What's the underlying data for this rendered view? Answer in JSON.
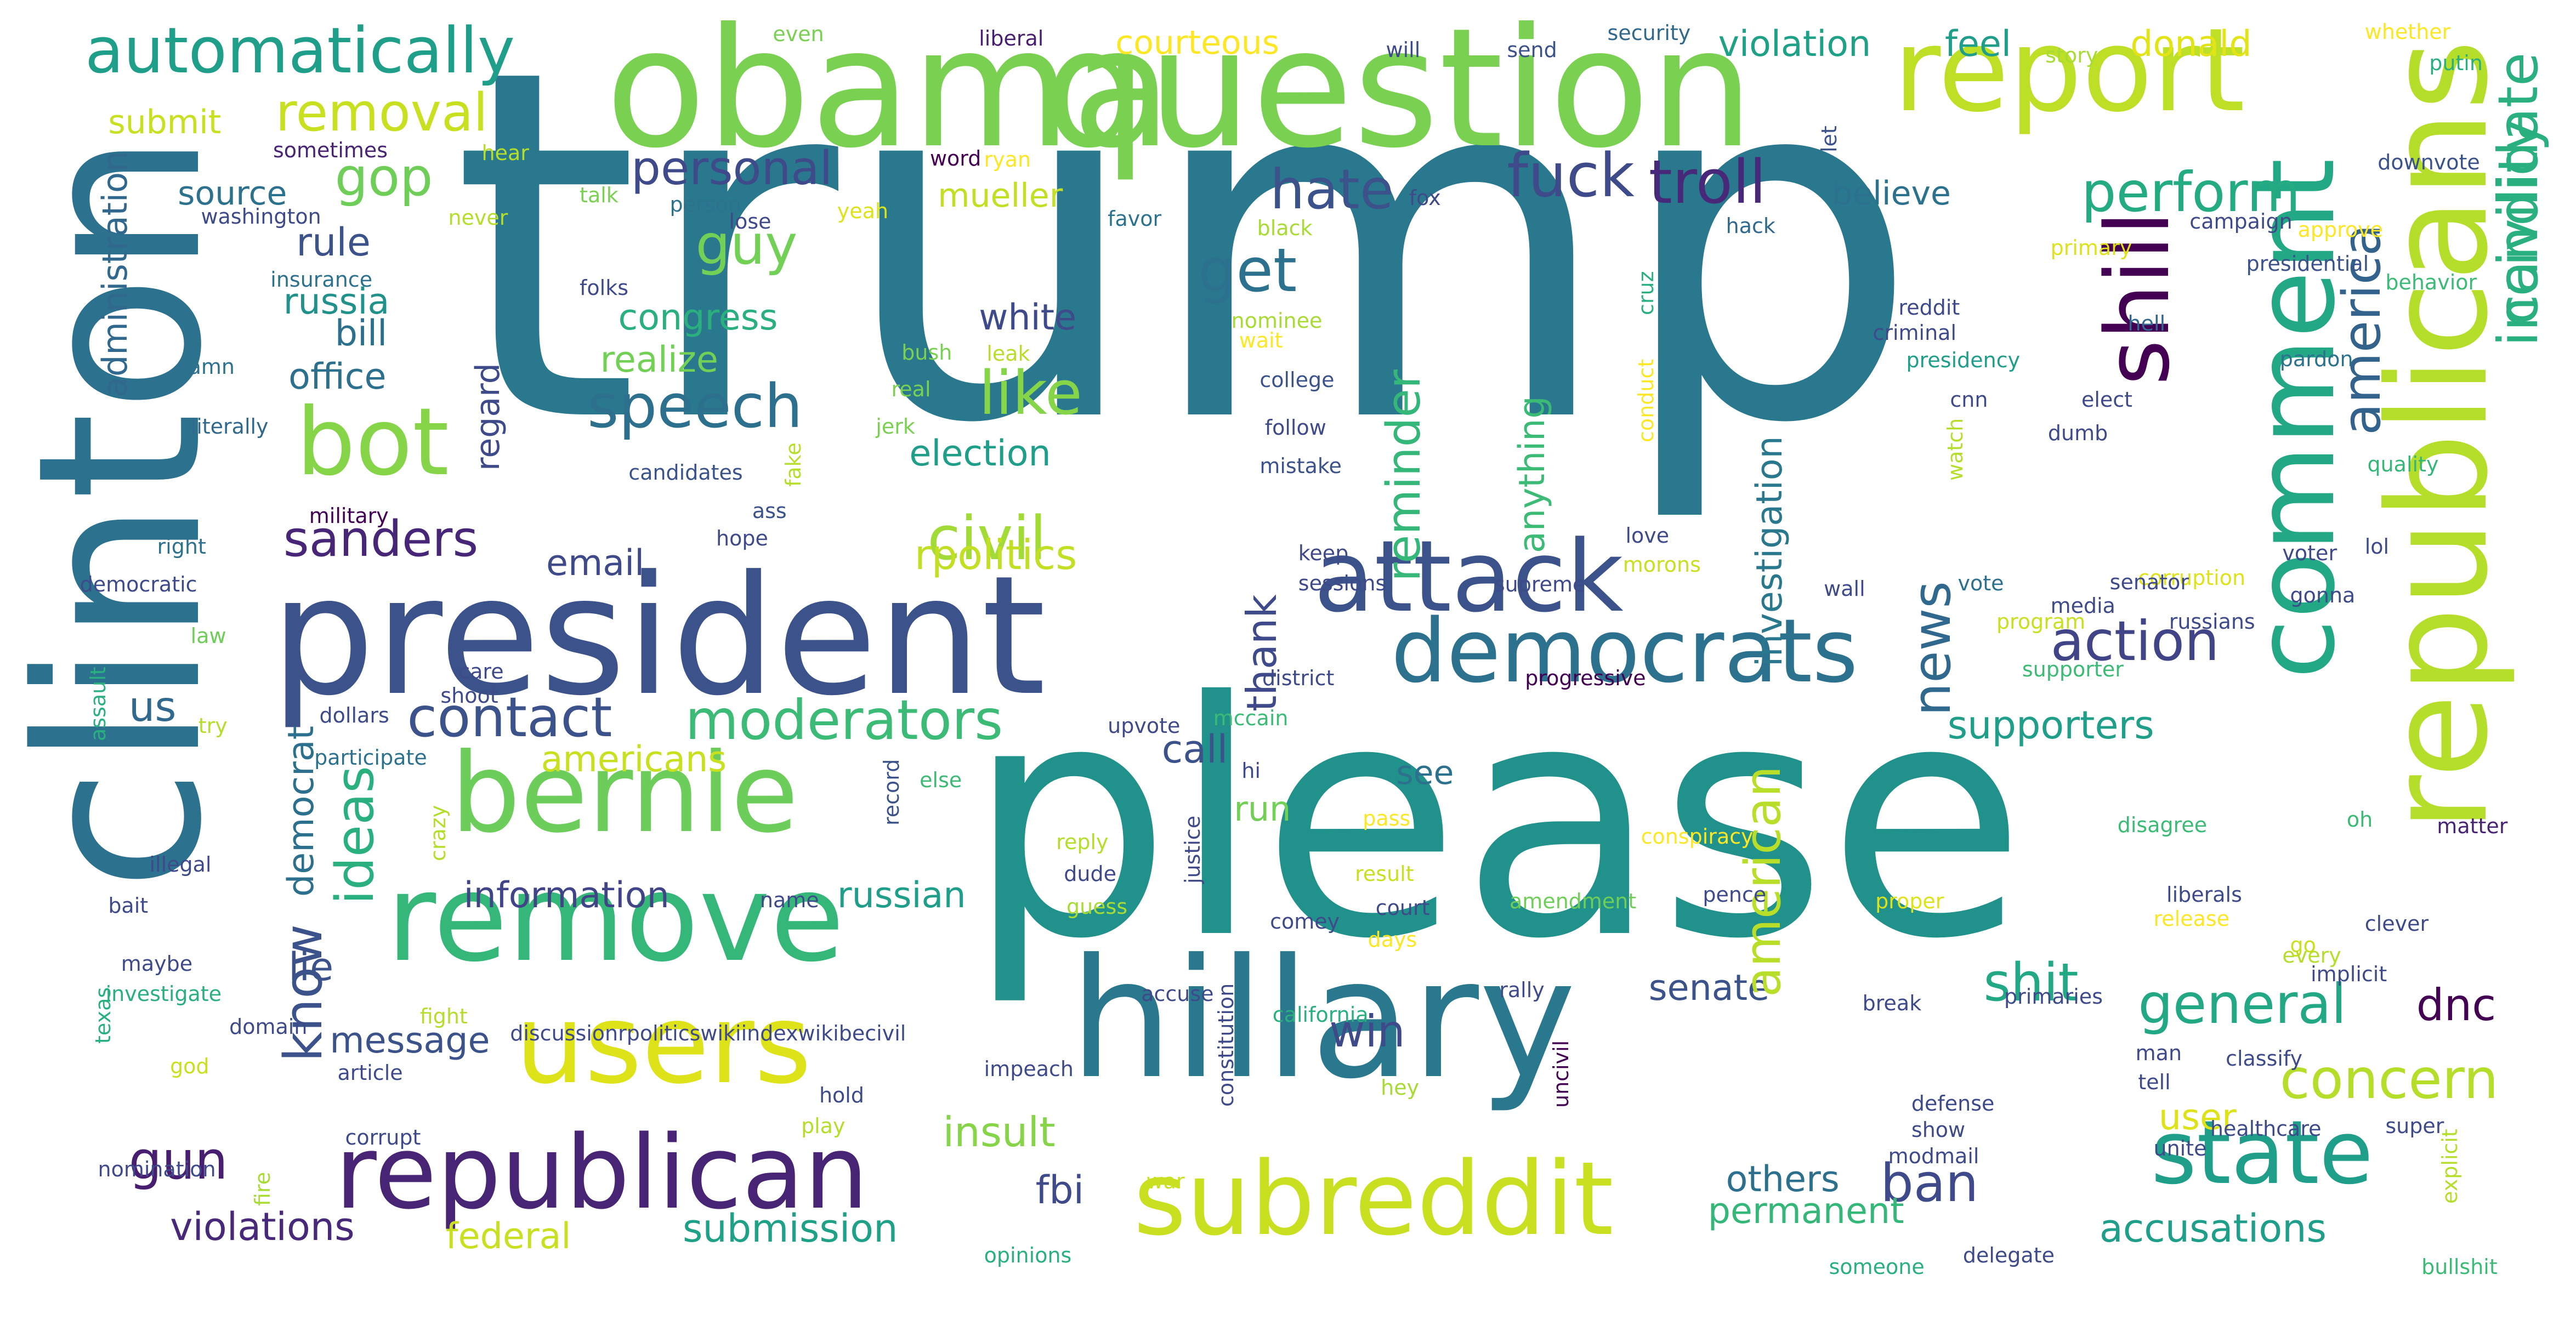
{
  "cloud": {
    "background": "#ffffff",
    "palette": [
      "#440154",
      "#3b528b",
      "#21918c",
      "#5ec962",
      "#fde725"
    ],
    "words": [
      {
        "text": "trump",
        "color": "#2a788e"
      },
      {
        "text": "please",
        "color": "#21918c"
      },
      {
        "text": "clinton",
        "color": "#2c728e"
      },
      {
        "text": "obama",
        "color": "#7ad151"
      },
      {
        "text": "question",
        "color": "#7ad151"
      },
      {
        "text": "president",
        "color": "#3b528b"
      },
      {
        "text": "hillary",
        "color": "#2a788e"
      },
      {
        "text": "republicans",
        "color": "#b5de2b"
      },
      {
        "text": "report",
        "color": "#bddf26"
      },
      {
        "text": "comment",
        "color": "#22a884"
      },
      {
        "text": "remove",
        "color": "#35b779"
      },
      {
        "text": "users",
        "color": "#dde318"
      },
      {
        "text": "bernie",
        "color": "#6ccd5a"
      },
      {
        "text": "republican",
        "color": "#482475"
      },
      {
        "text": "subreddit",
        "color": "#c8e020"
      },
      {
        "text": "democrats",
        "color": "#2c728e"
      },
      {
        "text": "attack",
        "color": "#3b528b"
      },
      {
        "text": "state",
        "color": "#1f9e89"
      },
      {
        "text": "shill",
        "color": "#440154"
      },
      {
        "text": "bot",
        "color": "#86d549"
      },
      {
        "text": "automatically",
        "color": "#1f9e89"
      },
      {
        "text": "incivility",
        "color": "#2ab07f"
      },
      {
        "text": "candidate",
        "color": "#2ab07f"
      },
      {
        "text": "removal",
        "color": "#c8e020"
      },
      {
        "text": "personal",
        "color": "#3e4a89"
      },
      {
        "text": "gop",
        "color": "#6ece58"
      },
      {
        "text": "guy",
        "color": "#73d056"
      },
      {
        "text": "hate",
        "color": "#3b528b"
      },
      {
        "text": "fuck",
        "color": "#3e4a89"
      },
      {
        "text": "troll",
        "color": "#482878"
      },
      {
        "text": "perform",
        "color": "#25ab82"
      },
      {
        "text": "america",
        "color": "#33638d"
      },
      {
        "text": "speech",
        "color": "#2d708e"
      },
      {
        "text": "like",
        "color": "#86d549"
      },
      {
        "text": "get",
        "color": "#2c728e"
      },
      {
        "text": "sanders",
        "color": "#482677"
      },
      {
        "text": "civil",
        "color": "#a2da37"
      },
      {
        "text": "moderators",
        "color": "#3bbb75"
      },
      {
        "text": "contact",
        "color": "#3b528b"
      },
      {
        "text": "action",
        "color": "#414487"
      },
      {
        "text": "news",
        "color": "#31688e"
      },
      {
        "text": "general",
        "color": "#22a884"
      },
      {
        "text": "concern",
        "color": "#b5de2b"
      },
      {
        "text": "shit",
        "color": "#22a884"
      },
      {
        "text": "dnc",
        "color": "#440154"
      },
      {
        "text": "ban",
        "color": "#3e4a89"
      },
      {
        "text": "know",
        "color": "#3b528b"
      },
      {
        "text": "gun",
        "color": "#481f70"
      },
      {
        "text": "ideas",
        "color": "#2ab07f"
      },
      {
        "text": "win",
        "color": "#3e4a89"
      },
      {
        "text": "senate",
        "color": "#3b528b"
      },
      {
        "text": "american",
        "color": "#b8de29"
      },
      {
        "text": "russian",
        "color": "#1f9e89"
      },
      {
        "text": "information",
        "color": "#414487"
      },
      {
        "text": "insult",
        "color": "#86d549"
      },
      {
        "text": "message",
        "color": "#3b528b"
      },
      {
        "text": "violations",
        "color": "#482878"
      },
      {
        "text": "submission",
        "color": "#1fa188"
      },
      {
        "text": "federal",
        "color": "#c8e020"
      },
      {
        "text": "accusations",
        "color": "#1f9e89"
      },
      {
        "text": "permanent",
        "color": "#35b779"
      },
      {
        "text": "others",
        "color": "#2d708e"
      },
      {
        "text": "supporters",
        "color": "#1f9e89"
      },
      {
        "text": "investigation",
        "color": "#2a788e"
      },
      {
        "text": "reminder",
        "color": "#35b779"
      },
      {
        "text": "thank",
        "color": "#3e4a89"
      },
      {
        "text": "anything",
        "color": "#3bbb75"
      },
      {
        "text": "user",
        "color": "#dde318"
      },
      {
        "text": "fbi",
        "color": "#3e4a89"
      },
      {
        "text": "lie",
        "color": "#3b528b"
      },
      {
        "text": "democrat",
        "color": "#2d708e"
      },
      {
        "text": "americans",
        "color": "#c8e020"
      },
      {
        "text": "email",
        "color": "#3e4a89"
      },
      {
        "text": "us",
        "color": "#31688e"
      },
      {
        "text": "rpolitics",
        "color": "#c2df23"
      },
      {
        "text": "election",
        "color": "#1f9e89"
      },
      {
        "text": "realize",
        "color": "#73d056"
      },
      {
        "text": "congress",
        "color": "#2ab07f"
      },
      {
        "text": "russia",
        "color": "#21918c"
      },
      {
        "text": "bill",
        "color": "#2d708e"
      },
      {
        "text": "office",
        "color": "#2d708e"
      },
      {
        "text": "rule",
        "color": "#3b528b"
      },
      {
        "text": "source",
        "color": "#2c728e"
      },
      {
        "text": "submit",
        "color": "#c8e020"
      },
      {
        "text": "administration",
        "color": "#31688e"
      },
      {
        "text": "regard",
        "color": "#3e4a89"
      },
      {
        "text": "white",
        "color": "#3e4a89"
      },
      {
        "text": "mueller",
        "color": "#c2df23"
      },
      {
        "text": "courteous",
        "color": "#fde725"
      },
      {
        "text": "violation",
        "color": "#1fa188"
      },
      {
        "text": "feel",
        "color": "#1f9e89"
      },
      {
        "text": "donald",
        "color": "#e2e418"
      },
      {
        "text": "believe",
        "color": "#2c728e"
      },
      {
        "text": "call",
        "color": "#3b528b"
      },
      {
        "text": "see",
        "color": "#2c728e"
      },
      {
        "text": "run",
        "color": "#73d056"
      },
      {
        "text": "even",
        "color": "#7ad151"
      },
      {
        "text": "liberal",
        "color": "#481f70"
      },
      {
        "text": "will",
        "color": "#3e4a89"
      },
      {
        "text": "send",
        "color": "#3b528b"
      },
      {
        "text": "security",
        "color": "#31688e"
      },
      {
        "text": "story",
        "color": "#a8db34"
      },
      {
        "text": "whether",
        "color": "#fde725"
      },
      {
        "text": "putin",
        "color": "#2ab07f"
      },
      {
        "text": "sometimes",
        "color": "#482475"
      },
      {
        "text": "washington",
        "color": "#3e4a89"
      },
      {
        "text": "hear",
        "color": "#b5de2b"
      },
      {
        "text": "talk",
        "color": "#7ad151"
      },
      {
        "text": "person",
        "color": "#2c728e"
      },
      {
        "text": "lose",
        "color": "#3e4a89"
      },
      {
        "text": "word",
        "color": "#440154"
      },
      {
        "text": "ryan",
        "color": "#fde725"
      },
      {
        "text": "yeah",
        "color": "#dde318"
      },
      {
        "text": "favor",
        "color": "#2c728e"
      },
      {
        "text": "black",
        "color": "#a8db34"
      },
      {
        "text": "fox",
        "color": "#3e4a89"
      },
      {
        "text": "hack",
        "color": "#31688e"
      },
      {
        "text": "let",
        "color": "#3b528b"
      },
      {
        "text": "campaign",
        "color": "#3e4a89"
      },
      {
        "text": "approve",
        "color": "#fde725"
      },
      {
        "text": "downvote",
        "color": "#3b528b"
      },
      {
        "text": "never",
        "color": "#b5de2b"
      },
      {
        "text": "insurance",
        "color": "#2c728e"
      },
      {
        "text": "folks",
        "color": "#3e4a89"
      },
      {
        "text": "nominee",
        "color": "#a8db34"
      },
      {
        "text": "primary",
        "color": "#dde318"
      },
      {
        "text": "presidential",
        "color": "#3b528b"
      },
      {
        "text": "behavior",
        "color": "#3bbb75"
      },
      {
        "text": "damn",
        "color": "#2c728e"
      },
      {
        "text": "bush",
        "color": "#7ad151"
      },
      {
        "text": "leak",
        "color": "#b8de29"
      },
      {
        "text": "wait",
        "color": "#fde725"
      },
      {
        "text": "cruz",
        "color": "#2ab07f"
      },
      {
        "text": "reddit",
        "color": "#3e4a89"
      },
      {
        "text": "criminal",
        "color": "#3e4a89"
      },
      {
        "text": "presidency",
        "color": "#1f9e89"
      },
      {
        "text": "hell",
        "color": "#31688e"
      },
      {
        "text": "pardon",
        "color": "#2c728e"
      },
      {
        "text": "real",
        "color": "#7ad151"
      },
      {
        "text": "college",
        "color": "#3b528b"
      },
      {
        "text": "literally",
        "color": "#31688e"
      },
      {
        "text": "jerk",
        "color": "#7ad151"
      },
      {
        "text": "follow",
        "color": "#3e4a89"
      },
      {
        "text": "conduct",
        "color": "#fde725"
      },
      {
        "text": "cnn",
        "color": "#3e4a89"
      },
      {
        "text": "elect",
        "color": "#3e4a89"
      },
      {
        "text": "dumb",
        "color": "#3e4a89"
      },
      {
        "text": "quality",
        "color": "#35b779"
      },
      {
        "text": "candidates",
        "color": "#3b528b"
      },
      {
        "text": "fake",
        "color": "#b5de2b"
      },
      {
        "text": "mistake",
        "color": "#3b528b"
      },
      {
        "text": "watch",
        "color": "#b5de2b"
      },
      {
        "text": "military",
        "color": "#440154"
      },
      {
        "text": "ass",
        "color": "#3b528b"
      },
      {
        "text": "hope",
        "color": "#3e4a89"
      },
      {
        "text": "right",
        "color": "#2c728e"
      },
      {
        "text": "keep",
        "color": "#3e4a89"
      },
      {
        "text": "love",
        "color": "#3e4a89"
      },
      {
        "text": "voter",
        "color": "#3e4a89"
      },
      {
        "text": "corruption",
        "color": "#dde318"
      },
      {
        "text": "lol",
        "color": "#3e4a89"
      },
      {
        "text": "democratic",
        "color": "#3e4a89"
      },
      {
        "text": "sessions",
        "color": "#3e4a89"
      },
      {
        "text": "supreme",
        "color": "#3e4a89"
      },
      {
        "text": "morons",
        "color": "#c8e020"
      },
      {
        "text": "gonna",
        "color": "#3e4a89"
      },
      {
        "text": "senator",
        "color": "#3e4a89"
      },
      {
        "text": "wall",
        "color": "#3e4a89"
      },
      {
        "text": "vote",
        "color": "#2c728e"
      },
      {
        "text": "media",
        "color": "#3e4a89"
      },
      {
        "text": "program",
        "color": "#c8e020"
      },
      {
        "text": "russians",
        "color": "#3e4a89"
      },
      {
        "text": "law",
        "color": "#6ece58"
      },
      {
        "text": "assault",
        "color": "#2ab07f"
      },
      {
        "text": "try",
        "color": "#b5de2b"
      },
      {
        "text": "care",
        "color": "#3e4a89"
      },
      {
        "text": "shoot",
        "color": "#3e4a89"
      },
      {
        "text": "district",
        "color": "#3e4a89"
      },
      {
        "text": "progressive",
        "color": "#440154"
      },
      {
        "text": "supporter",
        "color": "#3bbb75"
      },
      {
        "text": "dollars",
        "color": "#3e4a89"
      },
      {
        "text": "mccain",
        "color": "#3bbb75"
      },
      {
        "text": "upvote",
        "color": "#3e4a89"
      },
      {
        "text": "participate",
        "color": "#2c728e"
      },
      {
        "text": "hi",
        "color": "#3e4a89"
      },
      {
        "text": "record",
        "color": "#3b528b"
      },
      {
        "text": "else",
        "color": "#3bbb75"
      },
      {
        "text": "oh",
        "color": "#3bbb75"
      },
      {
        "text": "disagree",
        "color": "#3bbb75"
      },
      {
        "text": "matter",
        "color": "#482475"
      },
      {
        "text": "crazy",
        "color": "#b5de2b"
      },
      {
        "text": "illegal",
        "color": "#3e4a89"
      },
      {
        "text": "pass",
        "color": "#fde725"
      },
      {
        "text": "reply",
        "color": "#b5de2b"
      },
      {
        "text": "dude",
        "color": "#3e4a89"
      },
      {
        "text": "justice",
        "color": "#3e4a89"
      },
      {
        "text": "conspiracy",
        "color": "#fde725"
      },
      {
        "text": "result",
        "color": "#c8e020"
      },
      {
        "text": "bait",
        "color": "#3e4a89"
      },
      {
        "text": "name",
        "color": "#3e4a89"
      },
      {
        "text": "guess",
        "color": "#a8db34"
      },
      {
        "text": "court",
        "color": "#3e4a89"
      },
      {
        "text": "amendment",
        "color": "#6ece58"
      },
      {
        "text": "pence",
        "color": "#3e4a89"
      },
      {
        "text": "proper",
        "color": "#dde318"
      },
      {
        "text": "liberals",
        "color": "#3e4a89"
      },
      {
        "text": "release",
        "color": "#fde725"
      },
      {
        "text": "clever",
        "color": "#3e4a89"
      },
      {
        "text": "go",
        "color": "#c8e020"
      },
      {
        "text": "every",
        "color": "#b5de2b"
      },
      {
        "text": "implicit",
        "color": "#3e4a89"
      },
      {
        "text": "comey",
        "color": "#3e4a89"
      },
      {
        "text": "days",
        "color": "#fde725"
      },
      {
        "text": "maybe",
        "color": "#3e4a89"
      },
      {
        "text": "investigate",
        "color": "#2ab07f"
      },
      {
        "text": "texas",
        "color": "#2ab07f"
      },
      {
        "text": "domain",
        "color": "#3e4a89"
      },
      {
        "text": "fight",
        "color": "#b5de2b"
      },
      {
        "text": "discussionrpoliticswikiindexwikibecivil",
        "color": "#3e4a89"
      },
      {
        "text": "accuse",
        "color": "#3e4a89"
      },
      {
        "text": "constitution",
        "color": "#3e4a89"
      },
      {
        "text": "california",
        "color": "#2ab07f"
      },
      {
        "text": "rally",
        "color": "#3e4a89"
      },
      {
        "text": "break",
        "color": "#3e4a89"
      },
      {
        "text": "primaries",
        "color": "#3e4a89"
      },
      {
        "text": "man",
        "color": "#3e4a89"
      },
      {
        "text": "classify",
        "color": "#3e4a89"
      },
      {
        "text": "god",
        "color": "#c8e020"
      },
      {
        "text": "article",
        "color": "#3e4a89"
      },
      {
        "text": "impeach",
        "color": "#3e4a89"
      },
      {
        "text": "hey",
        "color": "#a8db34"
      },
      {
        "text": "uncivil",
        "color": "#440154"
      },
      {
        "text": "tell",
        "color": "#3e4a89"
      },
      {
        "text": "hold",
        "color": "#3e4a89"
      },
      {
        "text": "play",
        "color": "#b5de2b"
      },
      {
        "text": "defense",
        "color": "#3e4a89"
      },
      {
        "text": "show",
        "color": "#3e4a89"
      },
      {
        "text": "healthcare",
        "color": "#3e4a89"
      },
      {
        "text": "super",
        "color": "#3e4a89"
      },
      {
        "text": "corrupt",
        "color": "#3e4a89"
      },
      {
        "text": "modmail",
        "color": "#3e4a89"
      },
      {
        "text": "unite",
        "color": "#3e4a89"
      },
      {
        "text": "explicit",
        "color": "#b5de2b"
      },
      {
        "text": "nomination",
        "color": "#3e4a89"
      },
      {
        "text": "fire",
        "color": "#a8db34"
      },
      {
        "text": "war",
        "color": "#c8e020"
      },
      {
        "text": "opinions",
        "color": "#2ab07f"
      },
      {
        "text": "someone",
        "color": "#2ab07f"
      },
      {
        "text": "delegate",
        "color": "#3e4a89"
      },
      {
        "text": "bullshit",
        "color": "#3bbb75"
      }
    ]
  }
}
